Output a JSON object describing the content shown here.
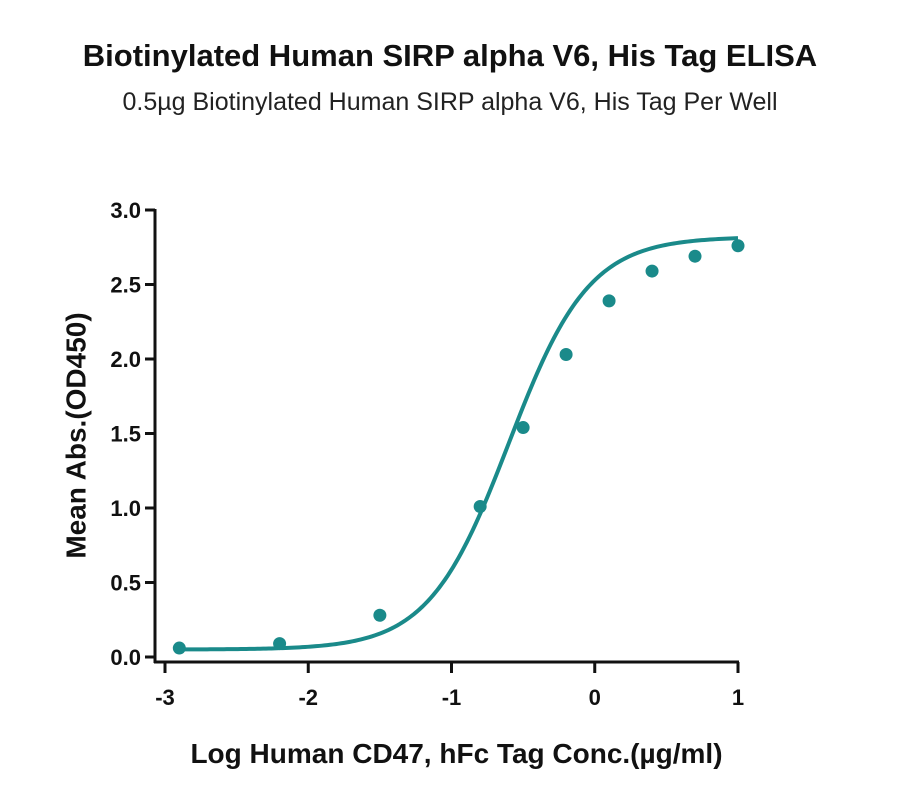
{
  "chart_data": {
    "type": "line",
    "title": "Biotinylated Human SIRP alpha V6, His Tag ELISA",
    "subtitle": "0.5µg Biotinylated Human SIRP alpha V6, His Tag Per Well",
    "xlabel": "Log Human CD47, hFc Tag Conc.(µg/ml)",
    "ylabel": "Mean Abs.(OD450)",
    "xlim": [
      -3,
      1
    ],
    "ylim": [
      0,
      3
    ],
    "xticks": [
      -3,
      -2,
      -1,
      0,
      1
    ],
    "yticks": [
      0.0,
      0.5,
      1.0,
      1.5,
      2.0,
      2.5,
      3.0
    ],
    "xtick_labels": [
      "-3",
      "-2",
      "-1",
      "0",
      "1"
    ],
    "ytick_labels": [
      "0.0",
      "0.5",
      "1.0",
      "1.5",
      "2.0",
      "2.5",
      "3.0"
    ],
    "grid": false,
    "color": "#1a8a8a",
    "series": [
      {
        "x": [
          -2.9,
          -2.2,
          -1.5,
          -0.8,
          -0.5,
          -0.2,
          0.1,
          0.4,
          0.7,
          1.0
        ],
        "y": [
          0.06,
          0.09,
          0.28,
          1.01,
          1.54,
          2.03,
          2.39,
          2.59,
          2.69,
          2.76
        ],
        "fit": {
          "model": "4PL",
          "bottom": 0.05,
          "top": 2.82,
          "logEC50": -0.6,
          "hill": 1.55
        }
      }
    ]
  }
}
